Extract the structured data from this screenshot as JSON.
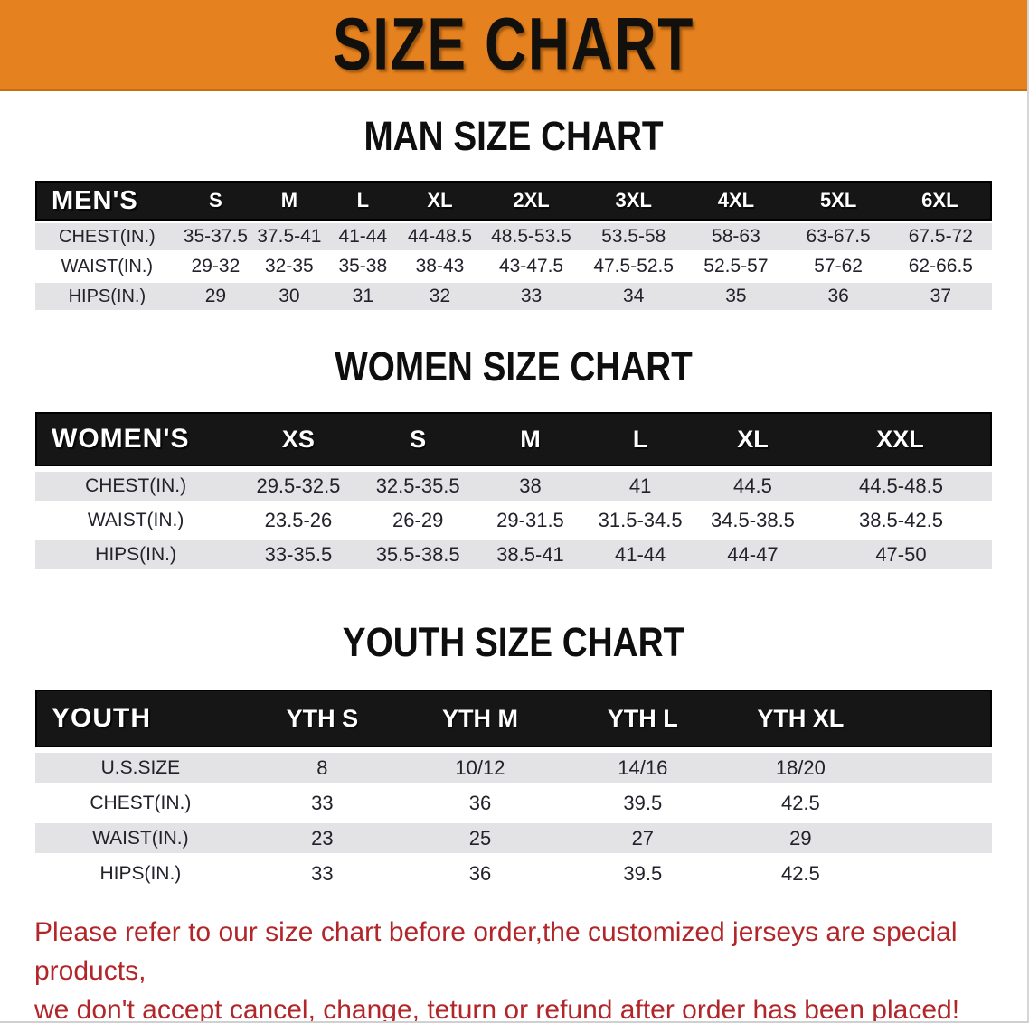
{
  "banner": {
    "title": "SIZE CHART",
    "bg_color": "#e5811e",
    "text_color": "#12100c"
  },
  "sections": [
    {
      "heading": "MAN SIZE CHART",
      "table": {
        "header_label": "MEN'S",
        "columns": [
          "S",
          "M",
          "L",
          "XL",
          "2XL",
          "3XL",
          "4XL",
          "5XL",
          "6XL"
        ],
        "rows": [
          {
            "label": "CHEST(IN.)",
            "values": [
              "35-37.5",
              "37.5-41",
              "41-44",
              "44-48.5",
              "48.5-53.5",
              "53.5-58",
              "58-63",
              "63-67.5",
              "67.5-72"
            ]
          },
          {
            "label": "WAIST(IN.)",
            "values": [
              "29-32",
              "32-35",
              "35-38",
              "38-43",
              "43-47.5",
              "47.5-52.5",
              "52.5-57",
              "57-62",
              "62-66.5"
            ]
          },
          {
            "label": "HIPS(IN.)",
            "values": [
              "29",
              "30",
              "31",
              "32",
              "33",
              "34",
              "35",
              "36",
              "37"
            ]
          }
        ]
      }
    },
    {
      "heading": "WOMEN SIZE CHART",
      "table": {
        "header_label": "WOMEN'S",
        "columns": [
          "XS",
          "S",
          "M",
          "L",
          "XL",
          "XXL"
        ],
        "rows": [
          {
            "label": "CHEST(IN.)",
            "values": [
              "29.5-32.5",
              "32.5-35.5",
              "38",
              "41",
              "44.5",
              "44.5-48.5"
            ]
          },
          {
            "label": "WAIST(IN.)",
            "values": [
              "23.5-26",
              "26-29",
              "29-31.5",
              "31.5-34.5",
              "34.5-38.5",
              "38.5-42.5"
            ]
          },
          {
            "label": "HIPS(IN.)",
            "values": [
              "33-35.5",
              "35.5-38.5",
              "38.5-41",
              "41-44",
              "44-47",
              "47-50"
            ]
          }
        ]
      }
    },
    {
      "heading": "YOUTH SIZE CHART",
      "table": {
        "header_label": "YOUTH",
        "columns": [
          "YTH S",
          "YTH M",
          "YTH L",
          "YTH XL"
        ],
        "rows": [
          {
            "label": "U.S.SIZE",
            "values": [
              "8",
              "10/12",
              "14/16",
              "18/20"
            ]
          },
          {
            "label": "CHEST(IN.)",
            "values": [
              "33",
              "36",
              "39.5",
              "42.5"
            ]
          },
          {
            "label": "WAIST(IN.)",
            "values": [
              "23",
              "25",
              "27",
              "29"
            ]
          },
          {
            "label": "HIPS(IN.)",
            "values": [
              "33",
              "36",
              "39.5",
              "42.5"
            ]
          }
        ]
      }
    }
  ],
  "footer": {
    "lines": [
      "Please refer to our size chart before order,the customized jerseys are special products,",
      "we don't accept cancel, change, teturn or refund after order has been placed!"
    ],
    "text_color": "#b2262a"
  },
  "table_stripe_color": "#e3e3e5",
  "table_header_color": "#161616"
}
